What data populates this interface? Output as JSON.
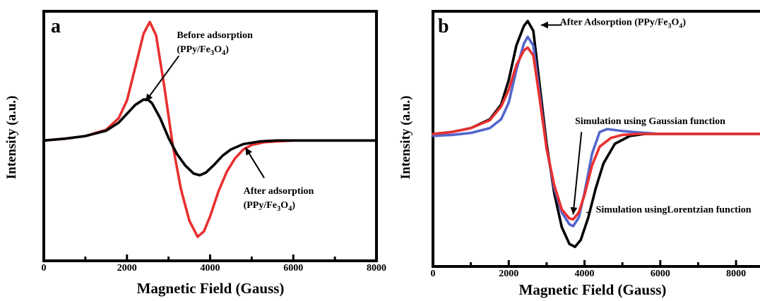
{
  "figure": {
    "panels": [
      {
        "label": "a",
        "xlabel": "Magnetic Field (Gauss)",
        "ylabel": "Intensity (a.u.)"
      },
      {
        "label": "b",
        "xlabel": "Magnetic Field (Gauss)",
        "ylabel": "Intensity (a.u.)"
      }
    ]
  },
  "chart_data": [
    {
      "type": "line",
      "panel": "a",
      "title": "",
      "xlabel": "Magnetic Field (Gauss)",
      "ylabel": "Intensity (a.u.)",
      "xlim": [
        0,
        8000
      ],
      "ylim": [
        -1.35,
        1.45
      ],
      "xticks": [
        0,
        2000,
        4000,
        6000,
        8000
      ],
      "xtick_labels": [
        "0",
        "2000",
        "4000",
        "6000",
        "8000"
      ],
      "y_tick_labels_shown": false,
      "grid": false,
      "legend": "none",
      "series": [
        {
          "color": "#e83030",
          "x": [
            0,
            500,
            1000,
            1500,
            1800,
            2000,
            2200,
            2400,
            2550,
            2700,
            2900,
            3100,
            3300,
            3500,
            3700,
            3850,
            4000,
            4200,
            4400,
            4600,
            4800,
            5000,
            5300,
            5600,
            6000,
            7000,
            8000
          ],
          "y": [
            0.0,
            0.02,
            0.05,
            0.12,
            0.25,
            0.45,
            0.82,
            1.2,
            1.33,
            1.18,
            0.6,
            -0.05,
            -0.55,
            -0.9,
            -1.08,
            -1.02,
            -0.85,
            -0.57,
            -0.35,
            -0.2,
            -0.1,
            -0.05,
            -0.02,
            -0.01,
            0.0,
            0.0,
            0.0
          ]
        },
        {
          "color": "#000000",
          "x": [
            0,
            500,
            1000,
            1500,
            1800,
            2000,
            2200,
            2400,
            2500,
            2600,
            2800,
            3000,
            3200,
            3400,
            3600,
            3750,
            3900,
            4100,
            4300,
            4500,
            4800,
            5200,
            5600,
            6000,
            7000,
            8000
          ],
          "y": [
            0.0,
            0.02,
            0.05,
            0.11,
            0.2,
            0.3,
            0.4,
            0.46,
            0.46,
            0.42,
            0.25,
            0.03,
            -0.15,
            -0.28,
            -0.37,
            -0.39,
            -0.36,
            -0.27,
            -0.17,
            -0.1,
            -0.04,
            -0.01,
            0.0,
            0.0,
            0.0,
            0.0
          ]
        }
      ],
      "annotations": [
        {
          "text": "Before adsorption",
          "line2": "(PPy/Fe",
          "sub1": "3",
          "mid": "O",
          "sub2": "4",
          "end": ")",
          "arrow_to": [
            2450,
            0.44
          ],
          "arrow_from": [
            3250,
            0.95
          ],
          "text_at": [
            3200,
            1.15
          ]
        },
        {
          "text": "After adsorption",
          "line2": "(PPy/Fe",
          "sub1": "3",
          "mid": "O",
          "sub2": "4",
          "end": ")",
          "arrow_to": [
            4850,
            -0.08
          ],
          "arrow_from": [
            5300,
            -0.42
          ],
          "text_at": [
            4800,
            -0.6
          ]
        }
      ]
    },
    {
      "type": "line",
      "panel": "b",
      "title": "",
      "xlabel": "Magnetic Field (Gauss)",
      "ylabel": "Intensity (a.u.)",
      "xlim": [
        0,
        8800
      ],
      "ylim": [
        -1.35,
        1.25
      ],
      "xticks": [
        0,
        2000,
        4000,
        6000,
        8000
      ],
      "xtick_labels": [
        "0",
        "2000",
        "4000",
        "6000",
        "8000"
      ],
      "y_tick_labels_shown": false,
      "grid": false,
      "legend": "none",
      "series": [
        {
          "color": "#000000",
          "x": [
            0,
            500,
            1000,
            1500,
            1800,
            2000,
            2200,
            2400,
            2500,
            2650,
            2800,
            3000,
            3200,
            3400,
            3600,
            3750,
            3900,
            4100,
            4300,
            4500,
            4800,
            5200,
            5600,
            6000,
            7000,
            8000,
            8800
          ],
          "y": [
            0.0,
            0.02,
            0.06,
            0.15,
            0.3,
            0.55,
            0.9,
            1.1,
            1.15,
            1.05,
            0.55,
            -0.1,
            -0.6,
            -0.95,
            -1.12,
            -1.15,
            -1.08,
            -0.85,
            -0.55,
            -0.3,
            -0.1,
            -0.02,
            0.0,
            0.0,
            0.0,
            0.0,
            0.0
          ]
        },
        {
          "color": "#5566cc",
          "x": [
            0,
            500,
            1000,
            1500,
            1800,
            2000,
            2200,
            2400,
            2500,
            2650,
            2800,
            3000,
            3200,
            3400,
            3600,
            3700,
            3850,
            4000,
            4200,
            4400,
            4600,
            4800,
            5000,
            5300,
            5600,
            6000,
            7000,
            8000,
            8800
          ],
          "y": [
            -0.02,
            -0.01,
            0.01,
            0.06,
            0.15,
            0.32,
            0.65,
            0.92,
            0.99,
            0.9,
            0.45,
            -0.15,
            -0.55,
            -0.8,
            -0.92,
            -0.94,
            -0.85,
            -0.6,
            -0.2,
            0.02,
            0.05,
            0.04,
            0.03,
            0.02,
            0.01,
            0.0,
            0.0,
            0.0,
            0.0
          ]
        },
        {
          "color": "#e83030",
          "x": [
            0,
            500,
            1000,
            1500,
            1800,
            2000,
            2200,
            2400,
            2500,
            2650,
            2800,
            3000,
            3200,
            3400,
            3600,
            3700,
            3850,
            4000,
            4200,
            4400,
            4700,
            5000,
            5400,
            6000,
            7000,
            8000,
            8800
          ],
          "y": [
            0.0,
            0.02,
            0.06,
            0.14,
            0.28,
            0.45,
            0.7,
            0.85,
            0.88,
            0.8,
            0.4,
            -0.15,
            -0.52,
            -0.77,
            -0.86,
            -0.87,
            -0.8,
            -0.62,
            -0.32,
            -0.13,
            -0.04,
            -0.01,
            0.0,
            0.0,
            0.0,
            0.0,
            0.0
          ]
        }
      ],
      "annotations": [
        {
          "text": "After Adsorption (PPy/Fe",
          "sub1": "3",
          "mid": "O",
          "sub2": "4",
          "end": ")",
          "arrow_to": [
            2850,
            1.11
          ],
          "arrow_from": [
            3400,
            1.11
          ],
          "text_at": [
            3350,
            1.11
          ]
        },
        {
          "text": "Simulation using Gaussian function",
          "arrow_to": [
            3700,
            -0.82
          ],
          "arrow_from": [
            3920,
            0.02
          ],
          "text_at": [
            3750,
            0.1
          ]
        },
        {
          "text": "Simulation usingLorentzian function",
          "dash_at": [
            4050,
            -0.8
          ],
          "text_at": [
            4300,
            -0.8
          ]
        }
      ]
    }
  ]
}
